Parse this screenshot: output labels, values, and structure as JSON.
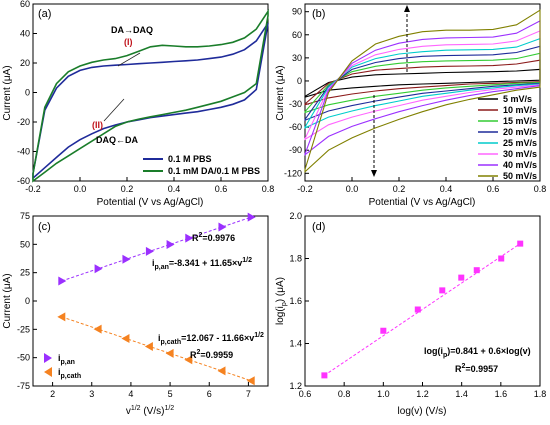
{
  "colors": {
    "blue": "#1f2b9a",
    "green": "#1a7d2a",
    "purple": "#9b30ff",
    "orange": "#f58220",
    "magenta": "#ff33ff",
    "red": "#c0141c"
  },
  "chart_data": [
    {
      "id": "a",
      "panel_label": "(a)",
      "type": "line",
      "xlabel": "Potential (V vs Ag/AgCl)",
      "ylabel": "Current (μA)",
      "xlim": [
        -0.2,
        0.8
      ],
      "ylim": [
        -60,
        60
      ],
      "xticks": [
        "-0.2",
        "0.0",
        "0.2",
        "0.4",
        "0.6",
        "0.8"
      ],
      "yticks": [
        "-60",
        "-40",
        "-20",
        "0",
        "20",
        "40",
        "60"
      ],
      "annotations": [
        {
          "text": "DA→DAQ"
        },
        {
          "text": "(I)"
        },
        {
          "text": "(II)"
        },
        {
          "text": "DAQ←DA"
        }
      ],
      "series": [
        {
          "name": "0.1 M PBS",
          "color_key": "blue",
          "x": [
            -0.2,
            -0.15,
            -0.1,
            -0.05,
            0.0,
            0.05,
            0.1,
            0.15,
            0.2,
            0.25,
            0.3,
            0.35,
            0.4,
            0.45,
            0.5,
            0.55,
            0.6,
            0.65,
            0.7,
            0.75,
            0.8,
            0.8,
            0.75,
            0.7,
            0.65,
            0.6,
            0.55,
            0.5,
            0.45,
            0.4,
            0.35,
            0.3,
            0.25,
            0.2,
            0.15,
            0.1,
            0.05,
            0.0,
            -0.05,
            -0.1,
            -0.15,
            -0.2
          ],
          "y": [
            -55,
            -12,
            3,
            11,
            15,
            17,
            18,
            18.5,
            19,
            19.5,
            20,
            20.5,
            21,
            21.5,
            22,
            23,
            24,
            26,
            29,
            35,
            47,
            47,
            2,
            -5,
            -8,
            -10,
            -11.5,
            -13,
            -14,
            -15,
            -16,
            -17,
            -18.5,
            -20,
            -22,
            -24.5,
            -28,
            -32,
            -37,
            -44,
            -51,
            -58
          ]
        },
        {
          "name": "0.1 mM DA/0.1 M PBS",
          "color_key": "green",
          "x": [
            -0.2,
            -0.15,
            -0.1,
            -0.05,
            0.0,
            0.05,
            0.1,
            0.15,
            0.2,
            0.25,
            0.3,
            0.35,
            0.4,
            0.45,
            0.5,
            0.55,
            0.6,
            0.65,
            0.7,
            0.75,
            0.8,
            0.8,
            0.75,
            0.7,
            0.65,
            0.6,
            0.55,
            0.5,
            0.45,
            0.4,
            0.35,
            0.3,
            0.25,
            0.2,
            0.15,
            0.1,
            0.05,
            0.0,
            -0.05,
            -0.1,
            -0.15,
            -0.2
          ],
          "y": [
            -55,
            -10,
            6,
            14,
            18,
            20.5,
            22,
            23,
            25,
            28,
            31,
            32,
            31.5,
            31,
            31,
            31.5,
            32.5,
            34,
            37,
            43,
            55,
            52,
            6,
            0,
            -3,
            -6,
            -8,
            -10,
            -12,
            -13.5,
            -15,
            -16.5,
            -18,
            -20,
            -23,
            -28,
            -33,
            -38,
            -43,
            -48,
            -54,
            -60
          ]
        }
      ]
    },
    {
      "id": "b",
      "panel_label": "(b)",
      "type": "line",
      "xlabel": "Potential (V vs Ag/AgCl)",
      "ylabel": "Current (μA)",
      "xlim": [
        -0.2,
        0.8
      ],
      "ylim": [
        -130,
        100
      ],
      "xticks": [
        "-0.2",
        "0.0",
        "0.2",
        "0.4",
        "0.6",
        "0.8"
      ],
      "yticks": [
        "-120",
        "-90",
        "-60",
        "-30",
        "0",
        "30",
        "60",
        "90"
      ],
      "series": [
        {
          "name": "5 mV/s",
          "color": "#000000",
          "upper": [
            -20,
            -2,
            5,
            8,
            9,
            10,
            11,
            11.5,
            12,
            13,
            15
          ],
          "lower": [
            -21,
            -12,
            -9,
            -7,
            -5,
            -4,
            -3,
            -2,
            -1,
            0,
            1
          ]
        },
        {
          "name": "10 mV/s",
          "color": "#8b1a1a",
          "upper": [
            -30,
            -3,
            9,
            14,
            16,
            18,
            19,
            19.5,
            20,
            22,
            27
          ],
          "lower": [
            -31,
            -22,
            -17,
            -13,
            -10,
            -8,
            -6,
            -4,
            -3,
            -2,
            -1
          ]
        },
        {
          "name": "15 mV/s",
          "color": "#33cc33",
          "upper": [
            -40,
            -5,
            12,
            19,
            23,
            25,
            26,
            26.5,
            27,
            29,
            36
          ],
          "lower": [
            -41,
            -31,
            -25,
            -20,
            -16,
            -12,
            -9,
            -7,
            -5,
            -3,
            -2
          ]
        },
        {
          "name": "20 mV/s",
          "color": "#1f2b9a",
          "upper": [
            -50,
            -7,
            15,
            24,
            29,
            32,
            33,
            33.5,
            34,
            37,
            45
          ],
          "lower": [
            -51,
            -39,
            -32,
            -26,
            -21,
            -16,
            -13,
            -10,
            -7,
            -5,
            -3
          ]
        },
        {
          "name": "25 mV/s",
          "color": "#00cccc",
          "upper": [
            -60,
            -8,
            18,
            29,
            35,
            38,
            40,
            40.5,
            41,
            44,
            55
          ],
          "lower": [
            -61,
            -47,
            -39,
            -32,
            -26,
            -20,
            -16,
            -12,
            -9,
            -6,
            -4
          ]
        },
        {
          "name": "30 mV/s",
          "color": "#ff66ff",
          "upper": [
            -75,
            -10,
            20,
            34,
            41,
            45,
            47,
            47.5,
            48,
            52,
            65
          ],
          "lower": [
            -76,
            -57,
            -47,
            -39,
            -32,
            -25,
            -20,
            -15,
            -11,
            -8,
            -5
          ]
        },
        {
          "name": "40 mV/s",
          "color": "#9b30ff",
          "upper": [
            -95,
            -12,
            23,
            40,
            49,
            54,
            56,
            56.5,
            57,
            62,
            78
          ],
          "lower": [
            -96,
            -72,
            -59,
            -49,
            -40,
            -32,
            -25,
            -19,
            -14,
            -10,
            -6
          ]
        },
        {
          "name": "50 mV/s",
          "color": "#808000",
          "upper": [
            -115,
            -15,
            26,
            48,
            58,
            64,
            66,
            66,
            67,
            73,
            92
          ],
          "lower": [
            -118,
            -90,
            -74,
            -61,
            -50,
            -40,
            -31,
            -24,
            -18,
            -12,
            -8
          ]
        }
      ],
      "x": [
        -0.2,
        -0.1,
        0.0,
        0.1,
        0.2,
        0.3,
        0.4,
        0.5,
        0.6,
        0.7,
        0.8
      ]
    },
    {
      "id": "c",
      "panel_label": "(c)",
      "type": "scatter",
      "xlabel": "v1/2 (V/s)1/2",
      "ylabel": "Current (μA)",
      "xlim": [
        1.5,
        7.5
      ],
      "ylim": [
        -75,
        75
      ],
      "xticks": [
        "2",
        "3",
        "4",
        "5",
        "6",
        "7"
      ],
      "yticks": [
        "-75",
        "-50",
        "-25",
        "0",
        "25",
        "50",
        "75"
      ],
      "series": [
        {
          "name": "i p,an",
          "color_key": "purple",
          "marker": "triangle-right",
          "x": [
            2.236,
            3.162,
            3.873,
            4.472,
            5.0,
            5.477,
            6.325,
            7.071
          ],
          "y": [
            17.7,
            28.5,
            36.8,
            43.8,
            49.9,
            55.5,
            65.3,
            74.0
          ],
          "fit_label": "ip,an=-8.341 + 11.65×v1/2",
          "r2": "R2=0.9976"
        },
        {
          "name": "i p,cath",
          "color_key": "orange",
          "marker": "triangle-left",
          "x": [
            2.236,
            3.162,
            3.873,
            4.472,
            5.0,
            5.477,
            6.325,
            7.071
          ],
          "y": [
            -14.0,
            -24.8,
            -33.1,
            -40.1,
            -46.2,
            -51.8,
            -61.7,
            -70.4
          ],
          "fit_label": "ip,cath=12.067 - 11.66×v1/2",
          "r2": "R2=0.9959"
        }
      ]
    },
    {
      "id": "d",
      "panel_label": "(d)",
      "type": "scatter",
      "xlabel": "log(v) (V/s)",
      "ylabel": "log(ip) (μA)",
      "xlim": [
        0.6,
        1.8
      ],
      "ylim": [
        1.2,
        2.0
      ],
      "xticks": [
        "0.6",
        "0.8",
        "1.0",
        "1.2",
        "1.4",
        "1.6",
        "1.8"
      ],
      "yticks": [
        "1.2",
        "1.4",
        "1.6",
        "1.8",
        "2.0"
      ],
      "series": [
        {
          "name": "log(ip)",
          "color_key": "magenta",
          "marker": "square",
          "x": [
            0.699,
            1.0,
            1.176,
            1.301,
            1.398,
            1.477,
            1.602,
            1.699
          ],
          "y": [
            1.25,
            1.46,
            1.56,
            1.65,
            1.71,
            1.745,
            1.8,
            1.87
          ]
        }
      ],
      "fit_label": "log(ip)=0.841 + 0.6×log(v)",
      "r2": "R2=0.9957"
    }
  ],
  "labels": {
    "a_panel": "(a)",
    "b_panel": "(b)",
    "c_panel": "(c)",
    "d_panel": "(d)",
    "potential_axis": "Potential (V vs Ag/AgCl)",
    "current_axis": "Current (μA)",
    "c_xlabel_main": "v",
    "c_xlabel_sup": "1/2",
    "c_xlabel_unit": " (V/s)",
    "c_xlabel_unit_sup": "1/2",
    "d_xlabel": "log(v) (V/s)",
    "d_ylabel_main": "log(i",
    "d_ylabel_sub": "p",
    "d_ylabel_unit": ") (μA)",
    "a_ann_daq": "DA→DAQ",
    "a_ann_I": "(I)",
    "a_ann_II": "(II)",
    "a_ann_da": "DAQ←DA",
    "a_leg1": "0.1 M PBS",
    "a_leg2": "0.1 mM DA/0.1 M PBS",
    "c_r2_an": "R",
    "c_r2_an_sup": "2",
    "c_r2_an_val": "=0.9976",
    "c_eq_an_pre": "i",
    "c_eq_an_sub": "p,an",
    "c_eq_an_post": "=-8.341 + 11.65×v",
    "c_eq_an_sup": "1/2",
    "c_eq_cath_pre": "i",
    "c_eq_cath_sub": "p,cath",
    "c_eq_cath_post": "=12.067 - 11.66×v",
    "c_eq_cath_sup": "1/2",
    "c_r2_cath": "R",
    "c_r2_cath_sup": "2",
    "c_r2_cath_val": "=0.9959",
    "c_leg_an_i": "i",
    "c_leg_an_sub": "p,an",
    "c_leg_cath_i": "i",
    "c_leg_cath_sub": "p,cath",
    "d_eq_pre": "log(i",
    "d_eq_sub": "p",
    "d_eq_post": ")=0.841 + 0.6×log(v)",
    "d_r2": "R",
    "d_r2_sup": "2",
    "d_r2_val": "=0.9957"
  }
}
